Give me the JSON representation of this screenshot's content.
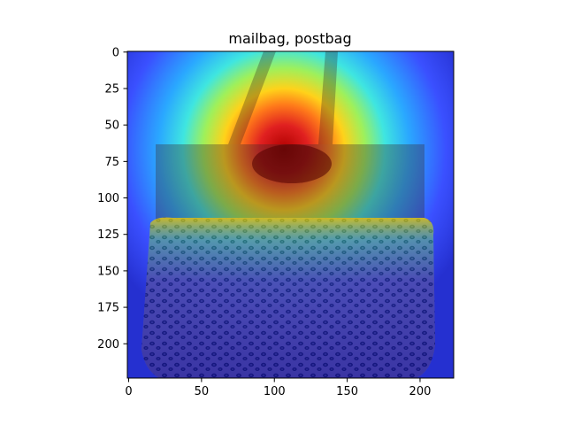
{
  "chart_data": {
    "type": "heatmap",
    "title": "mailbag, postbag",
    "xlabel": "",
    "ylabel": "",
    "xlim": [
      0,
      224
    ],
    "ylim": [
      224,
      0
    ],
    "x_ticks": [
      0,
      50,
      100,
      150,
      200
    ],
    "y_ticks": [
      0,
      25,
      50,
      75,
      100,
      125,
      150,
      175,
      200
    ],
    "grid": false,
    "colormap": "jet",
    "overlay": "class activation heatmap over photo of a leopard-print tote bag"
  }
}
